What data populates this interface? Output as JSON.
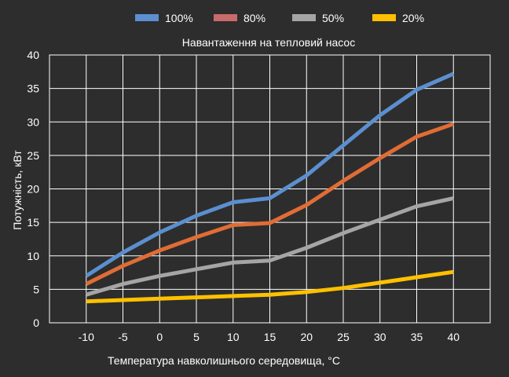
{
  "chart_data": {
    "type": "line",
    "title": "Навантаження на тепловий насос",
    "xlabel": "Температура навколишнього середовища, °C",
    "ylabel": "Потужність, кВт",
    "x": [
      -10,
      -5,
      0,
      5,
      10,
      15,
      20,
      25,
      30,
      35,
      40
    ],
    "x_ticks": [
      "-10",
      "-5",
      "0",
      "5",
      "10",
      "15",
      "20",
      "25",
      "30",
      "35",
      "40"
    ],
    "y_ticks": [
      "0",
      "5",
      "10",
      "15",
      "20",
      "25",
      "30",
      "35",
      "40"
    ],
    "xlim": [
      -15,
      45
    ],
    "ylim": [
      0,
      40
    ],
    "grid": true,
    "legend_position": "top",
    "series": [
      {
        "name": "100%",
        "color": "#5b8fcf",
        "values": [
          7.0,
          10.5,
          13.5,
          16.0,
          18.0,
          18.6,
          22.0,
          26.5,
          31.0,
          34.8,
          37.2
        ]
      },
      {
        "name": "80%",
        "color": "#e06d35",
        "legend_color": "#c86b6b",
        "values": [
          5.8,
          8.5,
          10.8,
          12.8,
          14.6,
          14.9,
          17.6,
          21.2,
          24.6,
          27.8,
          29.7
        ]
      },
      {
        "name": "50%",
        "color": "#a5a5a5",
        "values": [
          4.2,
          5.8,
          7.0,
          8.0,
          9.0,
          9.3,
          11.2,
          13.4,
          15.4,
          17.4,
          18.6
        ]
      },
      {
        "name": "20%",
        "color": "#ffc000",
        "values": [
          3.2,
          3.4,
          3.6,
          3.8,
          4.0,
          4.2,
          4.6,
          5.2,
          6.0,
          6.8,
          7.6
        ]
      }
    ]
  }
}
